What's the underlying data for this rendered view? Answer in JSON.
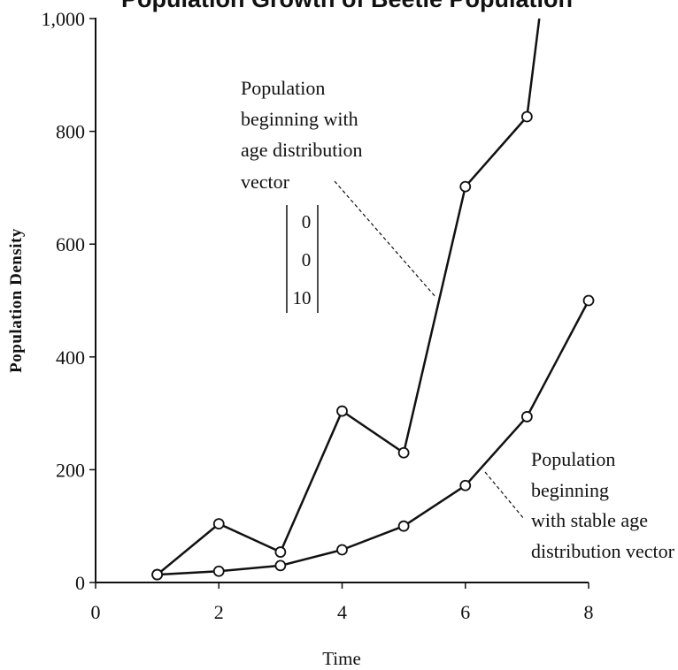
{
  "chart_data": {
    "type": "line",
    "title": "Population Growth of Beetle Population",
    "xlabel": "Time",
    "ylabel": "Population Density",
    "xlim": [
      0,
      8
    ],
    "ylim": [
      0,
      1000
    ],
    "x_ticks": [
      "0",
      "2",
      "4",
      "6",
      "8"
    ],
    "y_ticks": [
      "0",
      "200",
      "400",
      "600",
      "800",
      "1,000"
    ],
    "grid": false,
    "series": [
      {
        "x": [
          1,
          2,
          3,
          4,
          5,
          6,
          7,
          7.2
        ],
        "y": [
          14,
          104,
          54,
          304,
          230,
          702,
          826,
          1000
        ],
        "marker_count": 7
      },
      {
        "x": [
          1,
          2,
          3,
          4,
          5,
          6,
          7,
          8
        ],
        "y": [
          14,
          20,
          30,
          58,
          100,
          172,
          294,
          500
        ],
        "marker_count": 8
      }
    ],
    "annotations": [
      {
        "lines": [
          "Population",
          "beginning with",
          "age distribution",
          "vector"
        ],
        "vector": [
          "0",
          "0",
          "10"
        ],
        "points_to": [
          5.6,
          500
        ]
      },
      {
        "lines": [
          "Population",
          "beginning",
          "with stable age",
          "distribution vector"
        ],
        "points_to": [
          5.8,
          210
        ]
      }
    ]
  }
}
